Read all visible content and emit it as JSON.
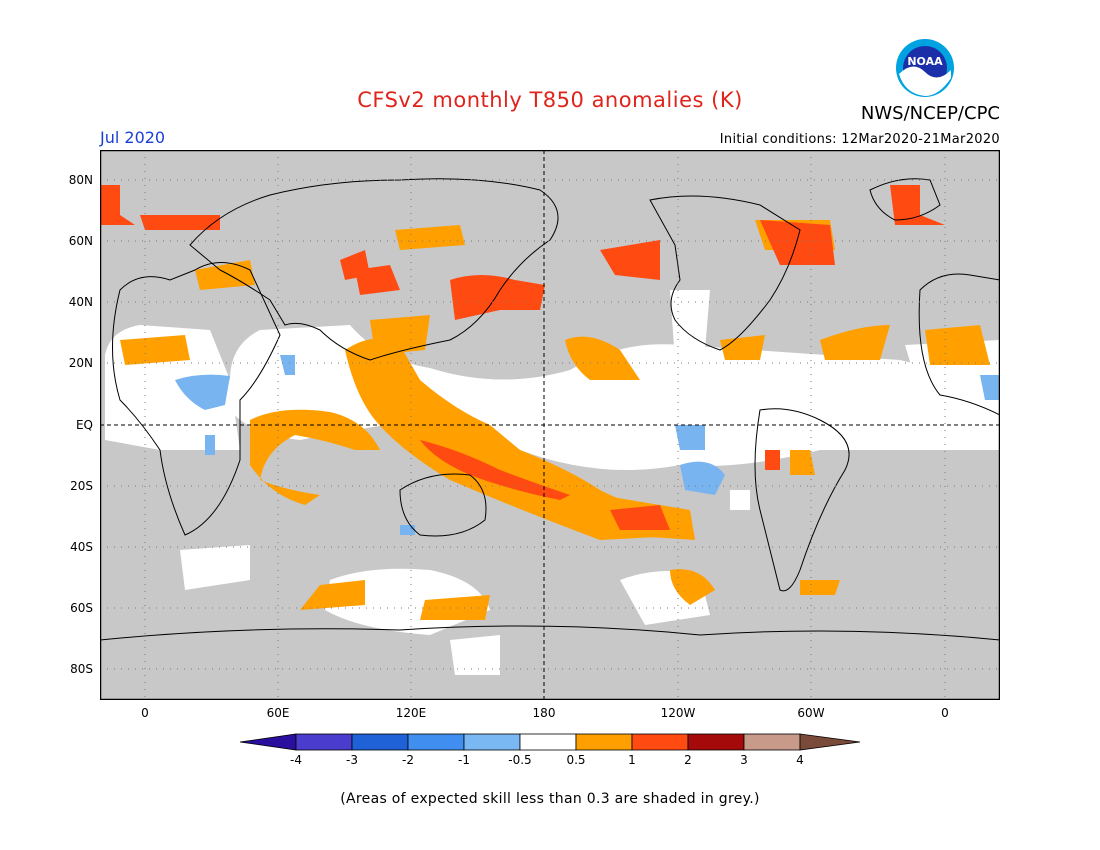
{
  "header": {
    "title": "CFSv2 monthly T850 anomalies (K)",
    "org": "NWS/NCEP/CPC",
    "logo_text": "NOAA",
    "month": "Jul 2020",
    "initial_conditions": "Initial conditions: 12Mar2020-21Mar2020"
  },
  "map": {
    "lat_labels": [
      "80N",
      "60N",
      "40N",
      "20N",
      "EQ",
      "20S",
      "40S",
      "60S",
      "80S"
    ],
    "lon_labels": [
      "0",
      "60E",
      "120E",
      "180",
      "120W",
      "60W",
      "0"
    ],
    "colors": {
      "no_skill_grey": "#c8c8c8",
      "ocean_white": "#ffffff",
      "light_orange": "#ff9f00",
      "red_orange": "#ff4a12",
      "light_blue": "#78b4f0",
      "dashed_reference": "#000000"
    }
  },
  "colorbar": {
    "labels": [
      "-4",
      "-3",
      "-2",
      "-1",
      "-0.5",
      "0.5",
      "1",
      "2",
      "3",
      "4"
    ],
    "colors": [
      "#2a0f9e",
      "#4a3ccc",
      "#1f62d8",
      "#3f8ef0",
      "#7ab8f4",
      "#ffffff",
      "#ff9f00",
      "#ff4a12",
      "#a50a0a",
      "#c89a8a",
      "#7a4a3a"
    ]
  },
  "footer": {
    "note": "(Areas of expected skill less than 0.3 are shaded in grey.)"
  }
}
